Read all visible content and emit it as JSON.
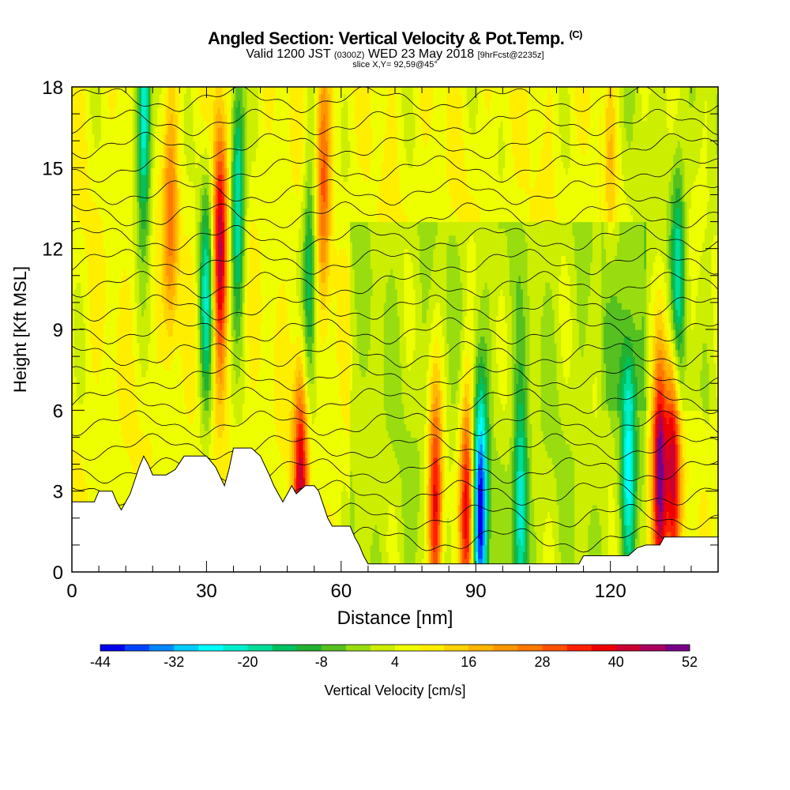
{
  "title": {
    "main": "Angled Section: Vertical Velocity & Pot.Temp.",
    "unit_tag": "(C)",
    "valid_prefix": "Valid 1200 JST",
    "valid_z": "(0300Z)",
    "valid_date": "WED 23 May 2018",
    "forecast": "[9hrFcst@2235z]",
    "slice": "slice X,Y= 92,59@45°"
  },
  "chart_data": {
    "type": "heatmap",
    "xlabel": "Distance [nm]",
    "ylabel": "Height [Kft MSL]",
    "xlim": [
      0,
      144
    ],
    "ylim": [
      0,
      18
    ],
    "x_ticks": [
      0,
      30,
      60,
      90,
      120
    ],
    "y_ticks": [
      0,
      3,
      6,
      9,
      12,
      15,
      18
    ],
    "colorbar": {
      "label": "Vertical Velocity [cm/s]",
      "tick_labels": [
        "-44",
        "-32",
        "-20",
        "-8",
        "4",
        "16",
        "28",
        "40",
        "52"
      ],
      "min": -44,
      "max": 52,
      "step": 4,
      "colors": [
        "#0000ee",
        "#0044ff",
        "#0088ff",
        "#00ccff",
        "#00ffff",
        "#00eecc",
        "#00dd99",
        "#00c060",
        "#22b030",
        "#55c020",
        "#99dd10",
        "#ccee00",
        "#eeff00",
        "#ffee00",
        "#ffd200",
        "#ffb400",
        "#ff9600",
        "#ff7800",
        "#ff5000",
        "#ff2000",
        "#ee0000",
        "#cc0030",
        "#aa0060",
        "#770088"
      ]
    },
    "terrain": [
      [
        0,
        2.6
      ],
      [
        5,
        2.6
      ],
      [
        6,
        3.0
      ],
      [
        9,
        3.0
      ],
      [
        10,
        2.6
      ],
      [
        11,
        2.3
      ],
      [
        12,
        2.6
      ],
      [
        13,
        2.9
      ],
      [
        14,
        3.4
      ],
      [
        15,
        3.9
      ],
      [
        16,
        4.3
      ],
      [
        17,
        4.0
      ],
      [
        18,
        3.6
      ],
      [
        21,
        3.6
      ],
      [
        23,
        3.8
      ],
      [
        25,
        4.3
      ],
      [
        30,
        4.3
      ],
      [
        32,
        3.9
      ],
      [
        34,
        3.2
      ],
      [
        35,
        3.8
      ],
      [
        36,
        4.6
      ],
      [
        40,
        4.6
      ],
      [
        42,
        4.3
      ],
      [
        44,
        3.6
      ],
      [
        45,
        3.2
      ],
      [
        46,
        2.9
      ],
      [
        47,
        2.6
      ],
      [
        48,
        2.9
      ],
      [
        49,
        3.2
      ],
      [
        50,
        2.9
      ],
      [
        52,
        3.2
      ],
      [
        54,
        3.2
      ],
      [
        55,
        3.0
      ],
      [
        56,
        2.5
      ],
      [
        57,
        2.0
      ],
      [
        58,
        1.7
      ],
      [
        62,
        1.7
      ],
      [
        63,
        1.3
      ],
      [
        64,
        1.0
      ],
      [
        65,
        0.6
      ],
      [
        66,
        0.3
      ],
      [
        113,
        0.3
      ],
      [
        114,
        0.6
      ],
      [
        124,
        0.6
      ],
      [
        126,
        0.9
      ],
      [
        128,
        1.0
      ],
      [
        131,
        1.0
      ],
      [
        132,
        1.3
      ],
      [
        144,
        1.3
      ]
    ],
    "theta_levels": [
      28,
      30,
      32,
      34,
      36,
      38,
      40,
      42,
      44,
      46,
      48,
      50,
      52,
      54,
      56,
      58,
      60,
      62,
      64,
      66
    ],
    "updraft_cores": [
      {
        "x": 33,
        "z": 12,
        "w": 44
      },
      {
        "x": 22,
        "z": 13,
        "w": 24
      },
      {
        "x": 51,
        "z": 3.3,
        "w": 40
      },
      {
        "x": 56,
        "z": 15,
        "w": 28
      },
      {
        "x": 81,
        "z": 2.2,
        "w": 44
      },
      {
        "x": 88,
        "z": 2.3,
        "w": 44
      },
      {
        "x": 131,
        "z": 3.2,
        "w": 52
      },
      {
        "x": 134,
        "z": 4.2,
        "w": 40
      },
      {
        "x": 120,
        "z": 15,
        "w": 16
      }
    ],
    "downdraft_cores": [
      {
        "x": 16,
        "z": 17,
        "w": -28
      },
      {
        "x": 37,
        "z": 14,
        "w": -24
      },
      {
        "x": 30,
        "z": 10,
        "w": -20
      },
      {
        "x": 91,
        "z": 2.0,
        "w": -40
      },
      {
        "x": 53,
        "z": 11,
        "w": -16
      },
      {
        "x": 100,
        "z": 2.5,
        "w": -20
      },
      {
        "x": 124,
        "z": 4.0,
        "w": -20
      },
      {
        "x": 135,
        "z": 11,
        "w": -16
      }
    ]
  }
}
